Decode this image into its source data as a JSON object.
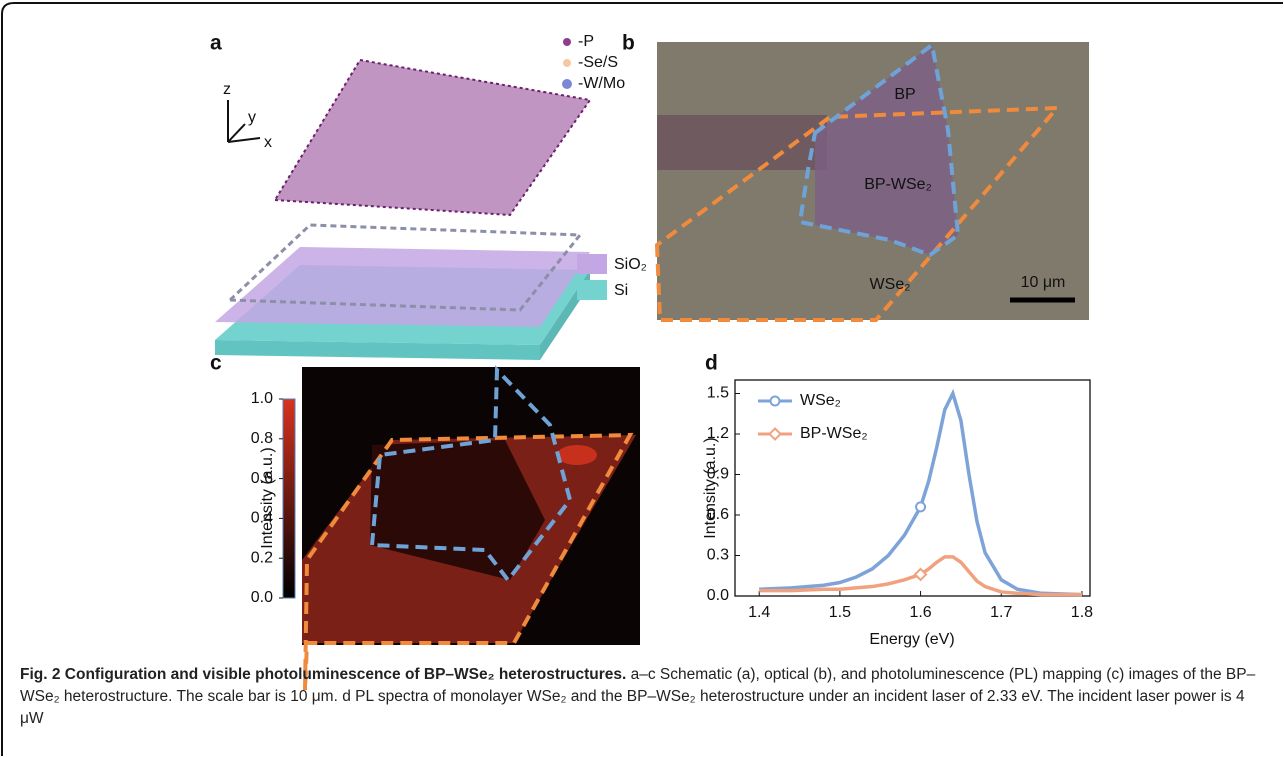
{
  "panels": {
    "a": {
      "label": "a",
      "legend": [
        "-P",
        "-Se/S",
        "-W/Mo"
      ],
      "axes": [
        "z",
        "y",
        "x"
      ],
      "layers": [
        "SiO₂",
        "Si"
      ]
    },
    "b": {
      "label": "b",
      "regions": [
        "BP",
        "BP-WSe₂",
        "WSe₂"
      ],
      "scale_bar": "10 μm"
    },
    "c": {
      "label": "c",
      "colorbar": {
        "label": "Intensity (a.u.)",
        "lim": [
          0,
          1
        ],
        "ticks": [
          {
            "value": 0,
            "label": "0.0"
          },
          0.2,
          0.4,
          0.6,
          0.8,
          {
            "value": 1,
            "label": "1.0"
          }
        ]
      }
    },
    "d": {
      "label": "d"
    }
  },
  "chart_data": {
    "type": "line",
    "x_label": "Energy (eV)",
    "y_label": "Intensity (a.u.)",
    "x": [
      1.4,
      1.44,
      1.48,
      1.5,
      1.52,
      1.54,
      1.56,
      1.58,
      1.6,
      1.61,
      1.62,
      1.63,
      1.64,
      1.65,
      1.66,
      1.67,
      1.68,
      1.7,
      1.72,
      1.75,
      1.8
    ],
    "series": [
      {
        "name": "WSe₂",
        "color": "#7ea3d9",
        "marker": "circle",
        "values": [
          0.05,
          0.06,
          0.08,
          0.1,
          0.14,
          0.2,
          0.3,
          0.45,
          0.66,
          0.85,
          1.1,
          1.38,
          1.5,
          1.3,
          0.9,
          0.55,
          0.32,
          0.12,
          0.05,
          0.02,
          0.01
        ]
      },
      {
        "name": "BP-WSe₂",
        "color": "#f0a27f",
        "marker": "diamond",
        "values": [
          0.04,
          0.04,
          0.05,
          0.05,
          0.06,
          0.07,
          0.09,
          0.12,
          0.16,
          0.2,
          0.25,
          0.29,
          0.29,
          0.25,
          0.18,
          0.11,
          0.07,
          0.03,
          0.02,
          0.01,
          0.01
        ]
      }
    ],
    "xlim": [
      1.37,
      1.81
    ],
    "ylim": [
      0,
      1.6
    ],
    "xticks": [
      1.4,
      1.5,
      1.6,
      1.7,
      1.8
    ],
    "yticks": [
      {
        "value": 0,
        "label": "0.0"
      },
      0.3,
      0.6,
      0.9,
      1.2,
      1.5
    ]
  },
  "caption": {
    "title": "Fig. 2 Configuration and visible photoluminescence of BP–WSe₂ heterostructures.",
    "body": "a–c Schematic (a), optical (b), and photoluminescence (PL) mapping (c) images of the BP–WSe₂ heterostructure. The scale bar is 10 μm. d PL spectra of monolayer WSe₂ and the BP–WSe₂ heterostructure under an incident laser of 2.33 eV. The incident laser power is 4 μW"
  }
}
